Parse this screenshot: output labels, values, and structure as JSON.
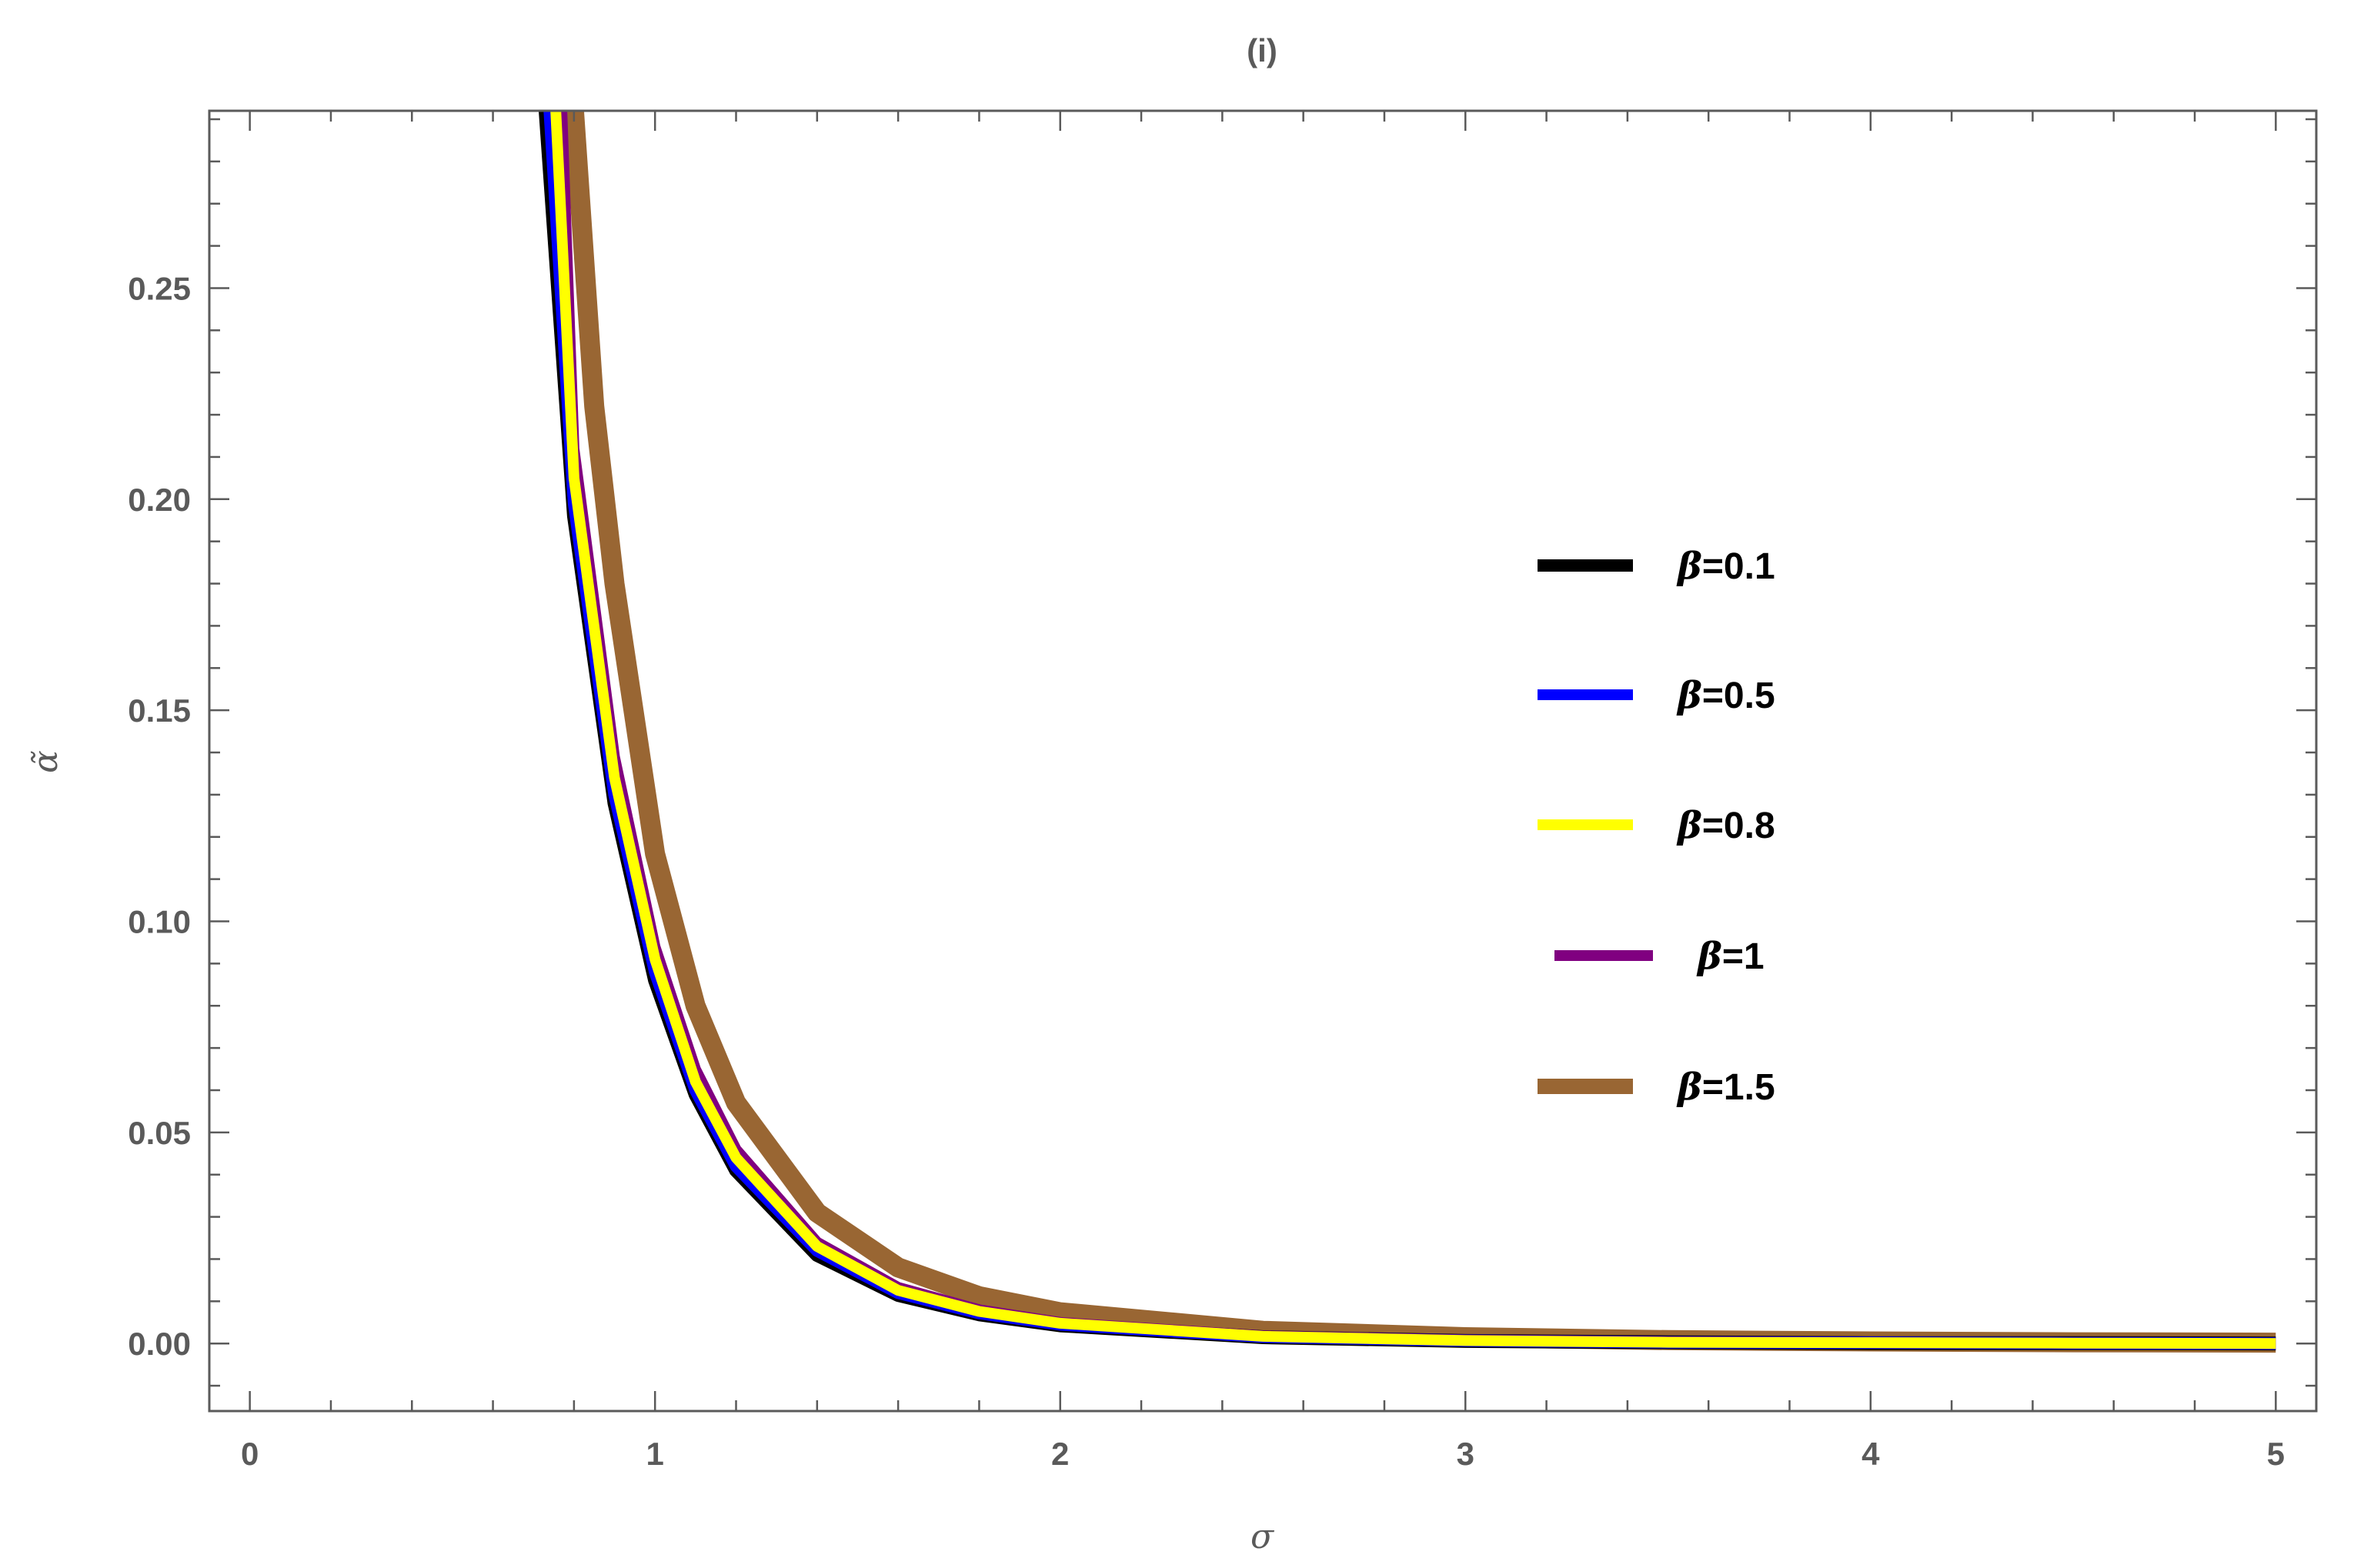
{
  "chart_data": {
    "type": "line",
    "title": "(i)",
    "xlabel": "σ",
    "ylabel": "α̃",
    "xlim": [
      -0.1,
      5.1
    ],
    "ylim": [
      -0.016,
      0.292
    ],
    "x_ticks": [
      0,
      1,
      2,
      3,
      4,
      5
    ],
    "x_tick_labels": [
      "0",
      "1",
      "2",
      "3",
      "4",
      "5"
    ],
    "y_ticks": [
      0.0,
      0.05,
      0.1,
      0.15,
      0.2,
      0.25
    ],
    "y_tick_labels": [
      "0.00",
      "0.05",
      "0.10",
      "0.15",
      "0.20",
      "0.25"
    ],
    "grid": false,
    "frame": true,
    "legend_position": "right-center",
    "series": [
      {
        "name": "β=0.1",
        "legend_symbol": "β",
        "legend_value": "=0.1",
        "color": "#000000",
        "x": [
          0.73,
          0.8,
          0.9,
          1.0,
          1.1,
          1.2,
          1.4,
          1.6,
          1.8,
          2.0,
          2.5,
          3.0,
          3.5,
          4.0,
          4.5,
          5.0
        ],
        "y": [
          0.292,
          0.196,
          0.128,
          0.086,
          0.059,
          0.041,
          0.021,
          0.0115,
          0.0069,
          0.0043,
          0.0015,
          0.0006,
          0.0003,
          0.0001,
          0.0001,
          0.0
        ]
      },
      {
        "name": "β=0.5",
        "legend_symbol": "β",
        "legend_value": "=0.5",
        "color": "#0000ff",
        "x": [
          0.74,
          0.8,
          0.9,
          1.0,
          1.1,
          1.2,
          1.4,
          1.6,
          1.8,
          2.0,
          2.5,
          3.0,
          3.5,
          4.0,
          4.5,
          5.0
        ],
        "y": [
          0.292,
          0.199,
          0.13,
          0.088,
          0.06,
          0.042,
          0.022,
          0.012,
          0.0072,
          0.0045,
          0.0016,
          0.0007,
          0.0003,
          0.0002,
          0.0001,
          0.0
        ]
      },
      {
        "name": "β=0.8",
        "legend_symbol": "β",
        "legend_value": "=0.8",
        "color": "#ffff00",
        "x": [
          0.755,
          0.8,
          0.9,
          1.0,
          1.1,
          1.2,
          1.4,
          1.6,
          1.8,
          2.0,
          2.5,
          3.0,
          3.5,
          4.0,
          4.5,
          5.0
        ],
        "y": [
          0.292,
          0.205,
          0.134,
          0.091,
          0.062,
          0.044,
          0.023,
          0.0126,
          0.0076,
          0.0048,
          0.0017,
          0.0007,
          0.0003,
          0.0002,
          0.0001,
          0.0
        ]
      },
      {
        "name": "β=1",
        "legend_symbol": "β",
        "legend_value": "=1",
        "color": "#800080",
        "x": [
          0.77,
          0.8,
          0.9,
          1.0,
          1.1,
          1.2,
          1.4,
          1.6,
          1.8,
          2.0,
          2.5,
          3.0,
          3.5,
          4.0,
          4.5,
          5.0
        ],
        "y": [
          0.292,
          0.212,
          0.139,
          0.094,
          0.065,
          0.046,
          0.024,
          0.0133,
          0.008,
          0.005,
          0.0018,
          0.0008,
          0.0004,
          0.0002,
          0.0001,
          0.0
        ]
      },
      {
        "name": "β=1.5",
        "legend_symbol": "β",
        "legend_value": "=1.5",
        "color": "#996633",
        "x": [
          0.8,
          0.85,
          0.9,
          1.0,
          1.1,
          1.2,
          1.4,
          1.6,
          1.8,
          2.0,
          2.5,
          3.0,
          3.5,
          4.0,
          4.5,
          5.0
        ],
        "y": [
          0.292,
          0.222,
          0.18,
          0.116,
          0.08,
          0.057,
          0.031,
          0.018,
          0.0112,
          0.0074,
          0.003,
          0.0015,
          0.0008,
          0.0005,
          0.0003,
          0.0002
        ]
      }
    ]
  }
}
